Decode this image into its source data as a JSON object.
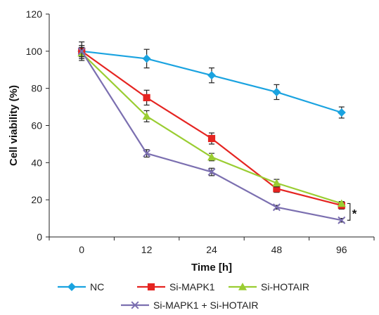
{
  "chart_data": {
    "type": "line",
    "xlabel": "Time [h]",
    "ylabel": "Cell viability (%)",
    "categories": [
      "0",
      "12",
      "24",
      "48",
      "96"
    ],
    "ylim": [
      0,
      120
    ],
    "yticks": [
      0,
      20,
      40,
      60,
      80,
      100,
      120
    ],
    "grid": false,
    "legend_position": "bottom",
    "annotation": "*",
    "series": [
      {
        "name": "NC",
        "color": "#1aa3e0",
        "marker": "diamond",
        "values": [
          100,
          96,
          87,
          78,
          67
        ],
        "errors": [
          5,
          5,
          4,
          4,
          3
        ]
      },
      {
        "name": "Si-MAPK1",
        "color": "#e52421",
        "marker": "square",
        "values": [
          100,
          75,
          53,
          26,
          17
        ],
        "errors": [
          3,
          4,
          3,
          2,
          2
        ]
      },
      {
        "name": "Si-HOTAIR",
        "color": "#9acd32",
        "marker": "triangle",
        "values": [
          99,
          65,
          43,
          29,
          18
        ],
        "errors": [
          3,
          3,
          2,
          2,
          1
        ]
      },
      {
        "name": "Si-MAPK1 + Si-HOTAIR",
        "color": "#7b6fb0",
        "marker": "x",
        "values": [
          100,
          45,
          35,
          16,
          9
        ],
        "errors": [
          3,
          2,
          2,
          1,
          1
        ]
      }
    ]
  }
}
